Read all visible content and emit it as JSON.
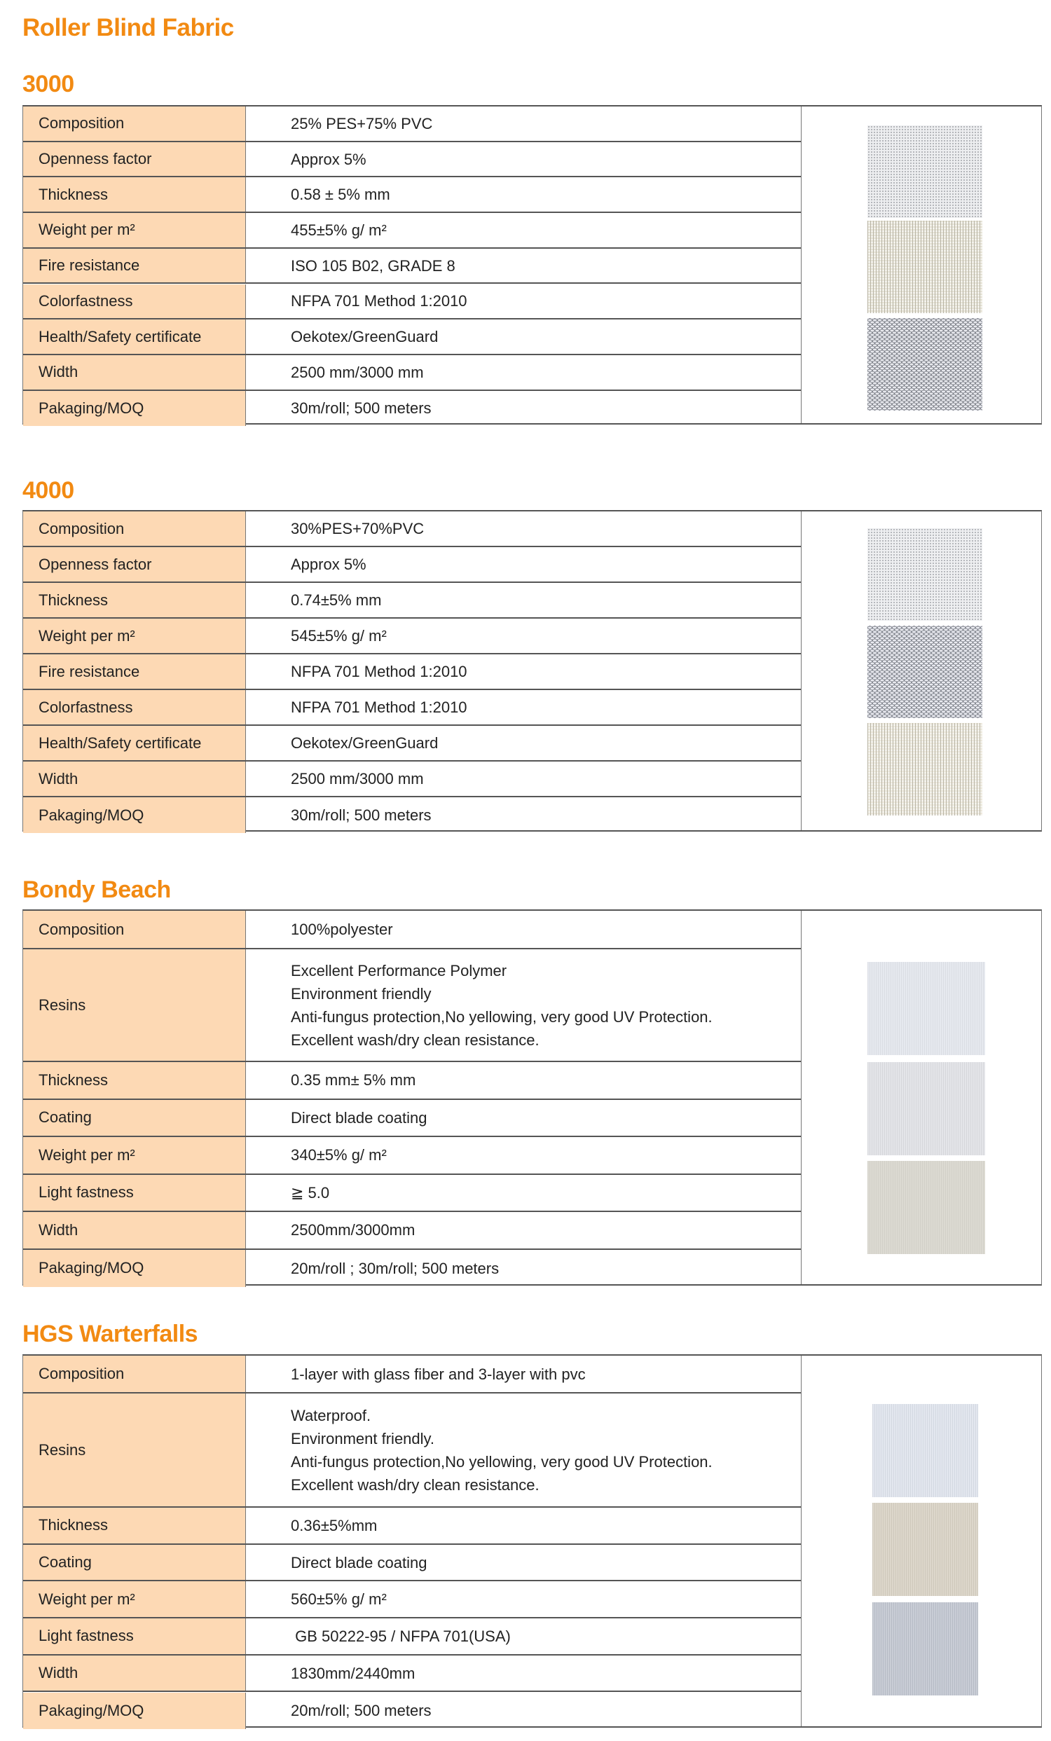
{
  "page_title": "Roller Blind Fabric",
  "colors": {
    "heading": "#F28A12",
    "label_bg": "#FDD9B4",
    "border": "#555555"
  },
  "sections": [
    {
      "title": "3000",
      "rows": [
        {
          "label": "Composition",
          "value": [
            "25% PES+75% PVC"
          ]
        },
        {
          "label": "Openness factor",
          "value": [
            "Approx 5%"
          ]
        },
        {
          "label": "Thickness",
          "value": [
            "0.58 ± 5% mm"
          ]
        },
        {
          "label": "Weight per m²",
          "value": [
            "455±5% g/ m²"
          ]
        },
        {
          "label": "Fire resistance",
          "value": [
            "ISO 105 B02, GRADE 8"
          ]
        },
        {
          "label": "Colorfastness",
          "value": [
            "NFPA 701 Method 1:2010"
          ]
        },
        {
          "label": "Health/Safety certificate",
          "value": [
            "Oekotex/GreenGuard"
          ]
        },
        {
          "label": "Width",
          "value": [
            "2500 mm/3000 mm"
          ]
        },
        {
          "label": "Pakaging/MOQ",
          "value": [
            "30m/roll; 500 meters"
          ]
        }
      ],
      "swatches": [
        {
          "name": "white-screen-fabric-swatch",
          "base": "#EDEEF0",
          "dot": "#A9ABB0",
          "pattern": "dots"
        },
        {
          "name": "beige-screen-fabric-swatch",
          "base": "#E6E3D6",
          "dot": "#B7B3A3",
          "pattern": "weave"
        },
        {
          "name": "grey-screen-fabric-swatch",
          "base": "#7D8088",
          "dot": "#E8E9EE",
          "pattern": "basket"
        }
      ]
    },
    {
      "title": "4000",
      "rows": [
        {
          "label": "Composition",
          "value": [
            "30%PES+70%PVC"
          ]
        },
        {
          "label": "Openness factor",
          "value": [
            "Approx 5%"
          ]
        },
        {
          "label": "Thickness",
          "value": [
            "0.74±5% mm"
          ]
        },
        {
          "label": "Weight per m²",
          "value": [
            "545±5% g/ m²"
          ]
        },
        {
          "label": "Fire resistance",
          "value": [
            "NFPA 701 Method 1:2010"
          ]
        },
        {
          "label": "Colorfastness",
          "value": [
            "NFPA 701 Method 1:2010"
          ]
        },
        {
          "label": "Health/Safety certificate",
          "value": [
            "Oekotex/GreenGuard"
          ]
        },
        {
          "label": "Width",
          "value": [
            "2500 mm/3000 mm"
          ]
        },
        {
          "label": "Pakaging/MOQ",
          "value": [
            "30m/roll; 500 meters"
          ]
        }
      ],
      "swatches": [
        {
          "name": "white-screen-fabric-swatch",
          "base": "#EEEFF1",
          "dot": "#ABADB2",
          "pattern": "dots"
        },
        {
          "name": "grey-screen-fabric-swatch",
          "base": "#7F838B",
          "dot": "#E9EAF0",
          "pattern": "basket"
        },
        {
          "name": "beige-screen-fabric-swatch",
          "base": "#ECE8DC",
          "dot": "#B8B4A4",
          "pattern": "weave"
        }
      ]
    },
    {
      "title": "Bondy Beach",
      "rows": [
        {
          "label": "Composition",
          "value": [
            "100%polyester"
          ]
        },
        {
          "label": "Resins",
          "value": [
            "Excellent Performance Polymer",
            "Environment friendly",
            "Anti-fungus protection,No yellowing, very good UV Protection.",
            "Excellent wash/dry clean resistance."
          ]
        },
        {
          "label": "Thickness",
          "value": [
            "0.35 mm± 5% mm"
          ]
        },
        {
          "label": "Coating",
          "value": [
            "Direct blade coating"
          ]
        },
        {
          "label": "Weight per m²",
          "value": [
            "340±5% g/ m²"
          ]
        },
        {
          "label": "Light fastness",
          "value": [
            "≧ 5.0"
          ]
        },
        {
          "label": "Width",
          "value": [
            "2500mm/3000mm"
          ]
        },
        {
          "label": "Pakaging/MOQ",
          "value": [
            "20m/roll ; 30m/roll; 500 meters"
          ]
        }
      ],
      "swatches": [
        {
          "name": "white-blackout-fabric-swatch",
          "base": "#E6E9EF",
          "dot": "#DADDE3",
          "pattern": "fine"
        },
        {
          "name": "light-grey-blackout-fabric-swatch",
          "base": "#E4E5E9",
          "dot": "#D6D7DB",
          "pattern": "fine"
        },
        {
          "name": "beige-blackout-fabric-swatch",
          "base": "#DCDAD2",
          "dot": "#D2D0C8",
          "pattern": "fine"
        }
      ]
    },
    {
      "title": "HGS Warterfalls",
      "rows": [
        {
          "label": "Composition",
          "value": [
            "1-layer with glass fiber and 3-layer with pvc"
          ]
        },
        {
          "label": "Resins",
          "value": [
            "Waterproof.",
            "Environment friendly.",
            "Anti-fungus protection,No yellowing, very good UV Protection.",
            "Excellent wash/dry clean resistance."
          ]
        },
        {
          "label": "Thickness",
          "value": [
            "0.36±5%mm"
          ]
        },
        {
          "label": "Coating",
          "value": [
            "Direct blade coating"
          ]
        },
        {
          "label": "Weight per m²",
          "value": [
            "560±5% g/ m²"
          ]
        },
        {
          "label": "Light fastness",
          "value": [
            " GB 50222-95 / NFPA 701(USA)"
          ]
        },
        {
          "label": "Width",
          "value": [
            "1830mm/2440mm"
          ]
        },
        {
          "label": "Pakaging/MOQ",
          "value": [
            "20m/roll; 500 meters"
          ]
        }
      ],
      "swatches": [
        {
          "name": "white-fiberglass-fabric-swatch",
          "base": "#E3E7EF",
          "dot": "#D3D8E1",
          "pattern": "fine"
        },
        {
          "name": "beige-fiberglass-fabric-swatch",
          "base": "#DDD7CB",
          "dot": "#CEC8BB",
          "pattern": "fine"
        },
        {
          "name": "grey-fiberglass-fabric-swatch",
          "base": "#C9CDD6",
          "dot": "#B6BBC5",
          "pattern": "fine"
        }
      ]
    }
  ]
}
